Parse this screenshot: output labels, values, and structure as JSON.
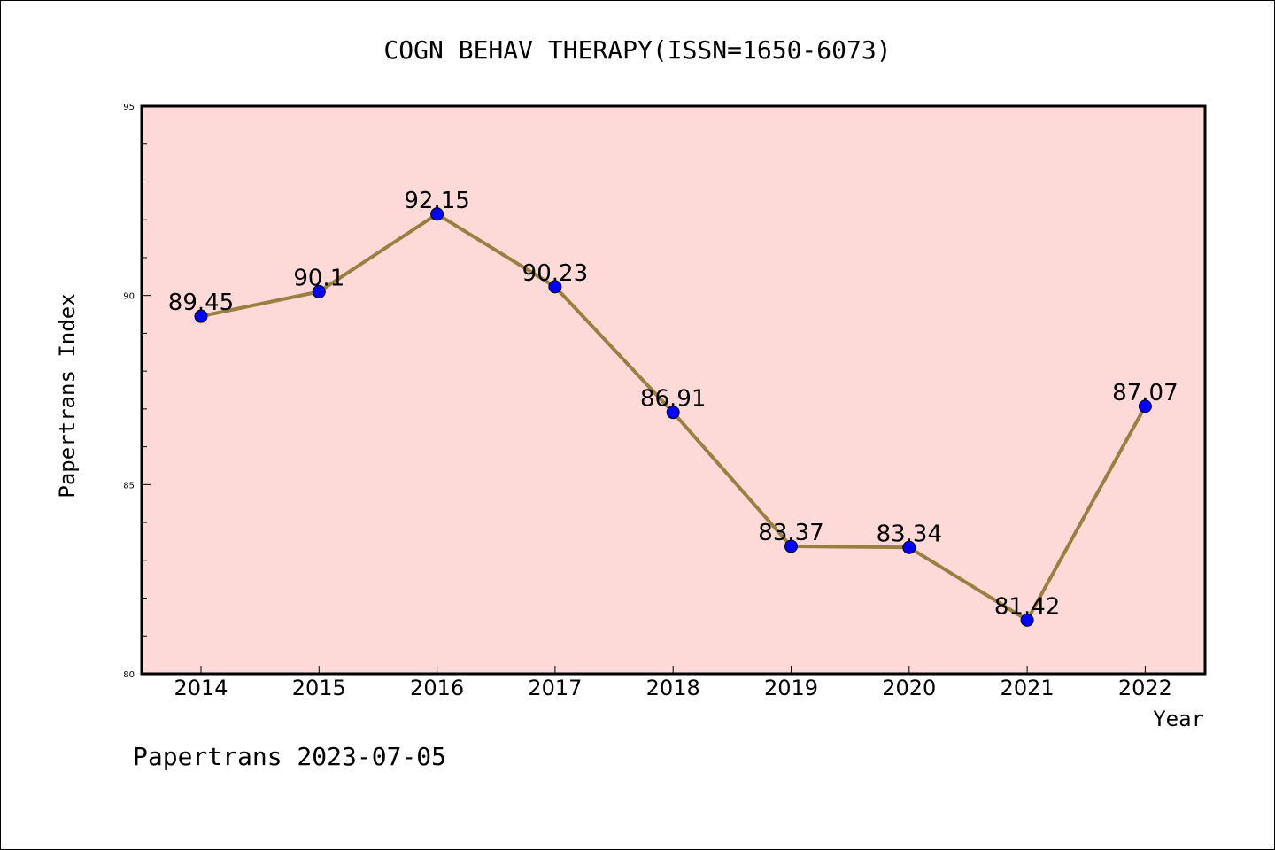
{
  "chart_data": {
    "type": "line",
    "title": "COGN BEHAV THERAPY(ISSN=1650-6073)",
    "xlabel": "Year",
    "ylabel": "Papertrans Index",
    "categories": [
      "2014",
      "2015",
      "2016",
      "2017",
      "2018",
      "2019",
      "2020",
      "2021",
      "2022"
    ],
    "series": [
      {
        "values": [
          89.45,
          90.1,
          92.15,
          90.23,
          86.91,
          83.37,
          83.34,
          81.42,
          87.07
        ],
        "labels": [
          "89.45",
          "90.1",
          "92.15",
          "90.23",
          "86.91",
          "83.37",
          "83.34",
          "81.42",
          "87.07"
        ]
      }
    ],
    "ylim": [
      80,
      95
    ],
    "yticks": [
      "80",
      "85",
      "90",
      "95"
    ],
    "grid": false,
    "legend": "none",
    "colors": {
      "plot_background": "#fddad8",
      "line": "#9a8040",
      "marker": "#0000ff"
    }
  },
  "footer": "Papertrans 2023-07-05"
}
